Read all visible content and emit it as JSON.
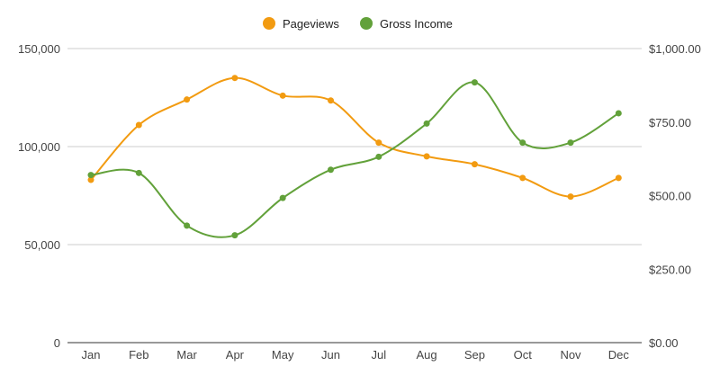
{
  "chart_data": {
    "type": "line",
    "smooth": true,
    "categories": [
      "Jan",
      "Feb",
      "Mar",
      "Apr",
      "May",
      "Jun",
      "Jul",
      "Aug",
      "Sep",
      "Oct",
      "Nov",
      "Dec"
    ],
    "series": [
      {
        "name": "Pageviews",
        "axis": "left",
        "color": "#f29b11",
        "values": [
          83000,
          111000,
          124000,
          135000,
          126000,
          123500,
          102000,
          95000,
          91000,
          84000,
          74500,
          84000
        ]
      },
      {
        "name": "Gross Income",
        "axis": "right",
        "color": "#62a13a",
        "values": [
          570,
          577,
          398,
          365,
          492,
          588,
          632,
          745,
          885,
          680,
          680,
          780
        ]
      }
    ],
    "y_left": {
      "ylim": [
        0,
        150000
      ],
      "ticks": [
        "0",
        "50,000",
        "100,000",
        "150,000"
      ]
    },
    "y_right": {
      "ylim": [
        0,
        1000
      ],
      "ticks": [
        "$0.00",
        "$250.00",
        "$500.00",
        "$750.00",
        "$1,000.00"
      ]
    },
    "legend": {
      "position": "top-center"
    },
    "grid": true
  }
}
